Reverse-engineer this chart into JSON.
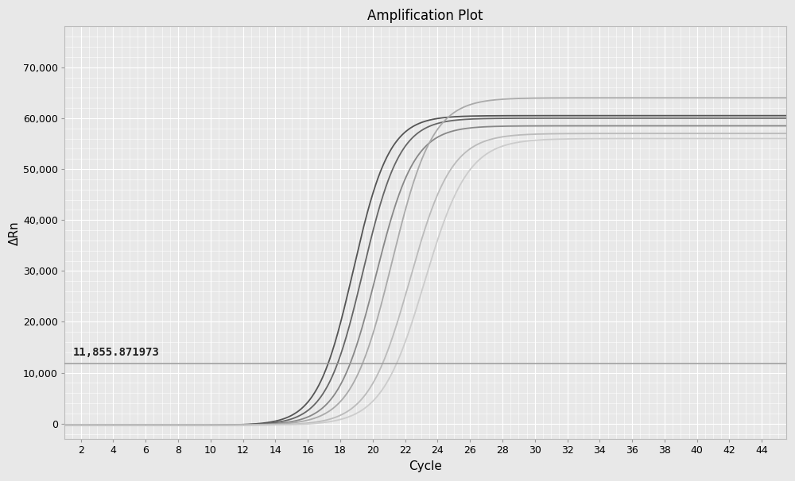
{
  "title": "Amplification Plot",
  "xlabel": "Cycle",
  "ylabel": "ΔRn",
  "xlim": [
    1,
    45.5
  ],
  "ylim": [
    -3000,
    78000
  ],
  "xticks": [
    2,
    4,
    6,
    8,
    10,
    12,
    14,
    16,
    18,
    20,
    22,
    24,
    26,
    28,
    30,
    32,
    34,
    36,
    38,
    40,
    42,
    44
  ],
  "yticks": [
    0,
    10000,
    20000,
    30000,
    40000,
    50000,
    60000,
    70000
  ],
  "ytick_labels": [
    "0",
    "10,000",
    "20,000",
    "30,000",
    "40,000",
    "50,000",
    "60,000",
    "70,000"
  ],
  "threshold_y": 11855.871973,
  "threshold_label": "11,855.871973",
  "threshold_color": "#999999",
  "background_color": "#e8e8e8",
  "grid_color": "#ffffff",
  "curves": [
    {
      "color": "#555555",
      "midpoint": 18.8,
      "plateau": 60500,
      "steepness": 0.9
    },
    {
      "color": "#666666",
      "midpoint": 19.4,
      "plateau": 60000,
      "steepness": 0.88
    },
    {
      "color": "#888888",
      "midpoint": 20.2,
      "plateau": 58500,
      "steepness": 0.85
    },
    {
      "color": "#aaaaaa",
      "midpoint": 21.2,
      "plateau": 64000,
      "steepness": 0.8
    },
    {
      "color": "#bbbbbb",
      "midpoint": 22.3,
      "plateau": 57000,
      "steepness": 0.78
    },
    {
      "color": "#cccccc",
      "midpoint": 23.2,
      "plateau": 56000,
      "steepness": 0.75
    }
  ],
  "title_fontsize": 12,
  "axis_label_fontsize": 11,
  "tick_fontsize": 9,
  "flat_threshold": 200
}
